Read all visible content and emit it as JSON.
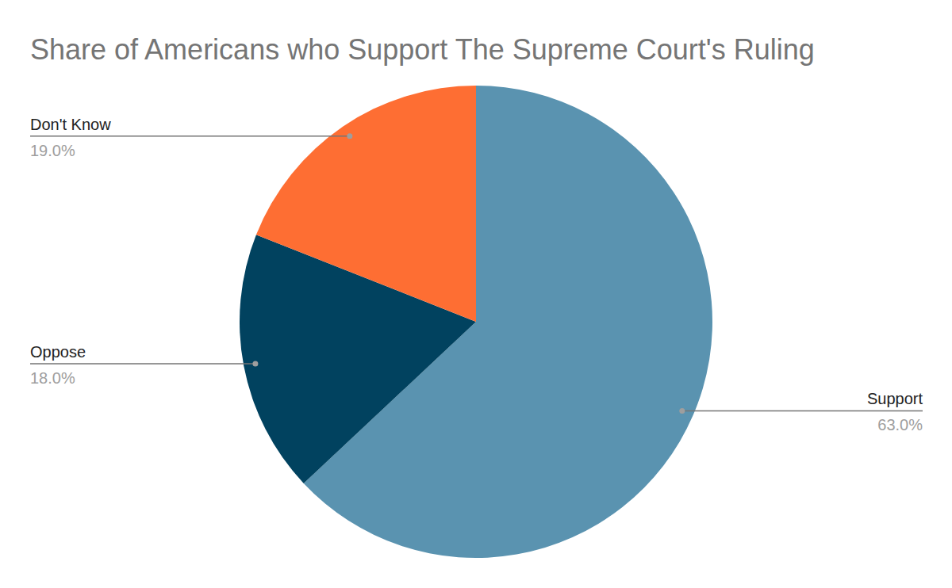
{
  "chart_data": {
    "type": "pie",
    "title": "Share of Americans who Support The Supreme Court's Ruling",
    "categories": [
      "Support",
      "Oppose",
      "Don't Know"
    ],
    "values": [
      63,
      18,
      19
    ],
    "value_labels": [
      "63.0%",
      "18.0%",
      "19.0%"
    ],
    "colors": [
      "#5a93b0",
      "#01425f",
      "#fe6e33"
    ],
    "data_labels": true
  }
}
